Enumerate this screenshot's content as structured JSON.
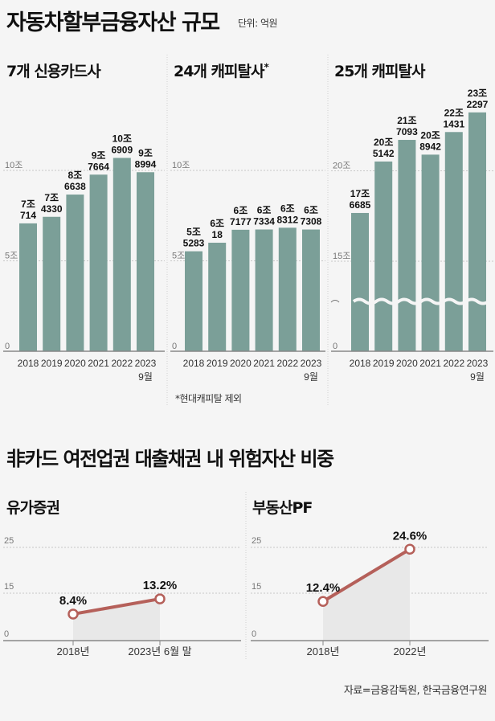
{
  "header": {
    "title": "자동차할부금융자산 규모",
    "unit": "단위: 억원"
  },
  "colors": {
    "bar": "#7b9f98",
    "line": "#b5605a",
    "area": "#e8e8e8",
    "grid": "#c8c8c8",
    "axis": "#888888"
  },
  "chart_data": [
    {
      "type": "bar",
      "title": "7개 신용카드사",
      "categories": [
        "2018",
        "2019",
        "2020",
        "2021",
        "2022",
        "2023"
      ],
      "category_note": "9월",
      "values": [
        70714,
        74330,
        86638,
        97664,
        106909,
        98994
      ],
      "labels": [
        [
          "7조",
          "714"
        ],
        [
          "7조",
          "4330"
        ],
        [
          "8조",
          "6638"
        ],
        [
          "9조",
          "7664"
        ],
        [
          "10조",
          "6909"
        ],
        [
          "9조",
          "8994"
        ]
      ],
      "yticks": [
        {
          "value": 0,
          "label": "0"
        },
        {
          "value": 50000,
          "label": "5조"
        },
        {
          "value": 100000,
          "label": "10조"
        }
      ],
      "ylim": [
        0,
        120000
      ]
    },
    {
      "type": "bar",
      "title": "24개 캐피탈사",
      "title_mark": "*",
      "categories": [
        "2018",
        "2019",
        "2020",
        "2021",
        "2022",
        "2023"
      ],
      "category_note": "9월",
      "values": [
        55283,
        60018,
        67177,
        67334,
        68312,
        67308
      ],
      "labels": [
        [
          "5조",
          "5283"
        ],
        [
          "6조",
          "18"
        ],
        [
          "6조",
          "7177"
        ],
        [
          "6조",
          "7334"
        ],
        [
          "6조",
          "8312"
        ],
        [
          "6조",
          "7308"
        ]
      ],
      "yticks": [
        {
          "value": 0,
          "label": "0"
        },
        {
          "value": 50000,
          "label": "5조"
        },
        {
          "value": 100000,
          "label": "10조"
        }
      ],
      "ylim": [
        0,
        120000
      ],
      "footnote": "*현대캐피탈 제외"
    },
    {
      "type": "bar",
      "title": "25개 캐피탈사",
      "categories": [
        "2018",
        "2019",
        "2020",
        "2021",
        "2022",
        "2023"
      ],
      "category_note": "9월",
      "values": [
        176685,
        205142,
        217093,
        208942,
        221431,
        232297
      ],
      "labels": [
        [
          "17조",
          "6685"
        ],
        [
          "20조",
          "5142"
        ],
        [
          "21조",
          "7093"
        ],
        [
          "20조",
          "8942"
        ],
        [
          "22조",
          "1431"
        ],
        [
          "23조",
          "2297"
        ]
      ],
      "yticks": [
        {
          "value": 0,
          "label": "0"
        },
        {
          "value": 150000,
          "label": "15조"
        },
        {
          "value": 200000,
          "label": "20조"
        }
      ],
      "axis_break": true,
      "ylim": [
        0,
        240000
      ]
    },
    {
      "type": "line",
      "title": "유가증권",
      "categories": [
        "2018년",
        "2023년 6월 말"
      ],
      "values": [
        8.4,
        13.2
      ],
      "labels": [
        "8.4%",
        "13.2%"
      ],
      "yticks": [
        0,
        15,
        25
      ],
      "ylim": [
        0,
        25
      ]
    },
    {
      "type": "line",
      "title": "부동산PF",
      "categories": [
        "2018년",
        "2022년"
      ],
      "values": [
        12.4,
        24.6
      ],
      "labels": [
        "12.4%",
        "24.6%"
      ],
      "yticks": [
        0,
        15,
        25
      ],
      "ylim": [
        0,
        25
      ]
    }
  ],
  "section2": {
    "title": "非카드 여전업권 대출채권 내 위험자산 비중"
  },
  "source": "자료=금융감독원, 한국금융연구원"
}
